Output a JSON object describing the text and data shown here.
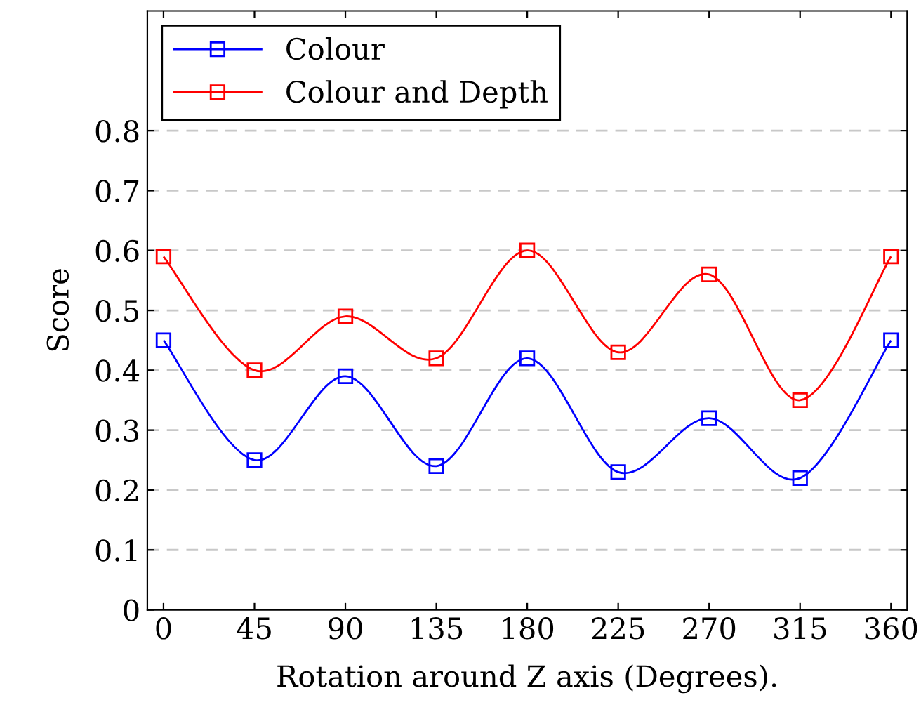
{
  "chart_data": {
    "type": "line",
    "xlabel": "Rotation around Z axis (Degrees).",
    "ylabel": "Score",
    "x": [
      0,
      45,
      90,
      135,
      180,
      225,
      270,
      315,
      360
    ],
    "series": [
      {
        "name": "Colour",
        "color": "#0000ff",
        "values": [
          0.45,
          0.25,
          0.39,
          0.24,
          0.42,
          0.23,
          0.32,
          0.22,
          0.45
        ]
      },
      {
        "name": "Colour and Depth",
        "color": "#ff0000",
        "values": [
          0.59,
          0.4,
          0.49,
          0.42,
          0.6,
          0.43,
          0.56,
          0.35,
          0.59
        ]
      }
    ],
    "xlim": [
      -8,
      368
    ],
    "ylim": [
      0,
      1.0
    ],
    "xticks": [
      0,
      45,
      90,
      135,
      180,
      225,
      270,
      315,
      360
    ],
    "yticks": [
      0,
      0.1,
      0.2,
      0.3,
      0.4,
      0.5,
      0.6,
      0.7,
      0.8
    ],
    "grid": "y",
    "legend": "top left",
    "marker": "square",
    "line_style": "solid"
  }
}
